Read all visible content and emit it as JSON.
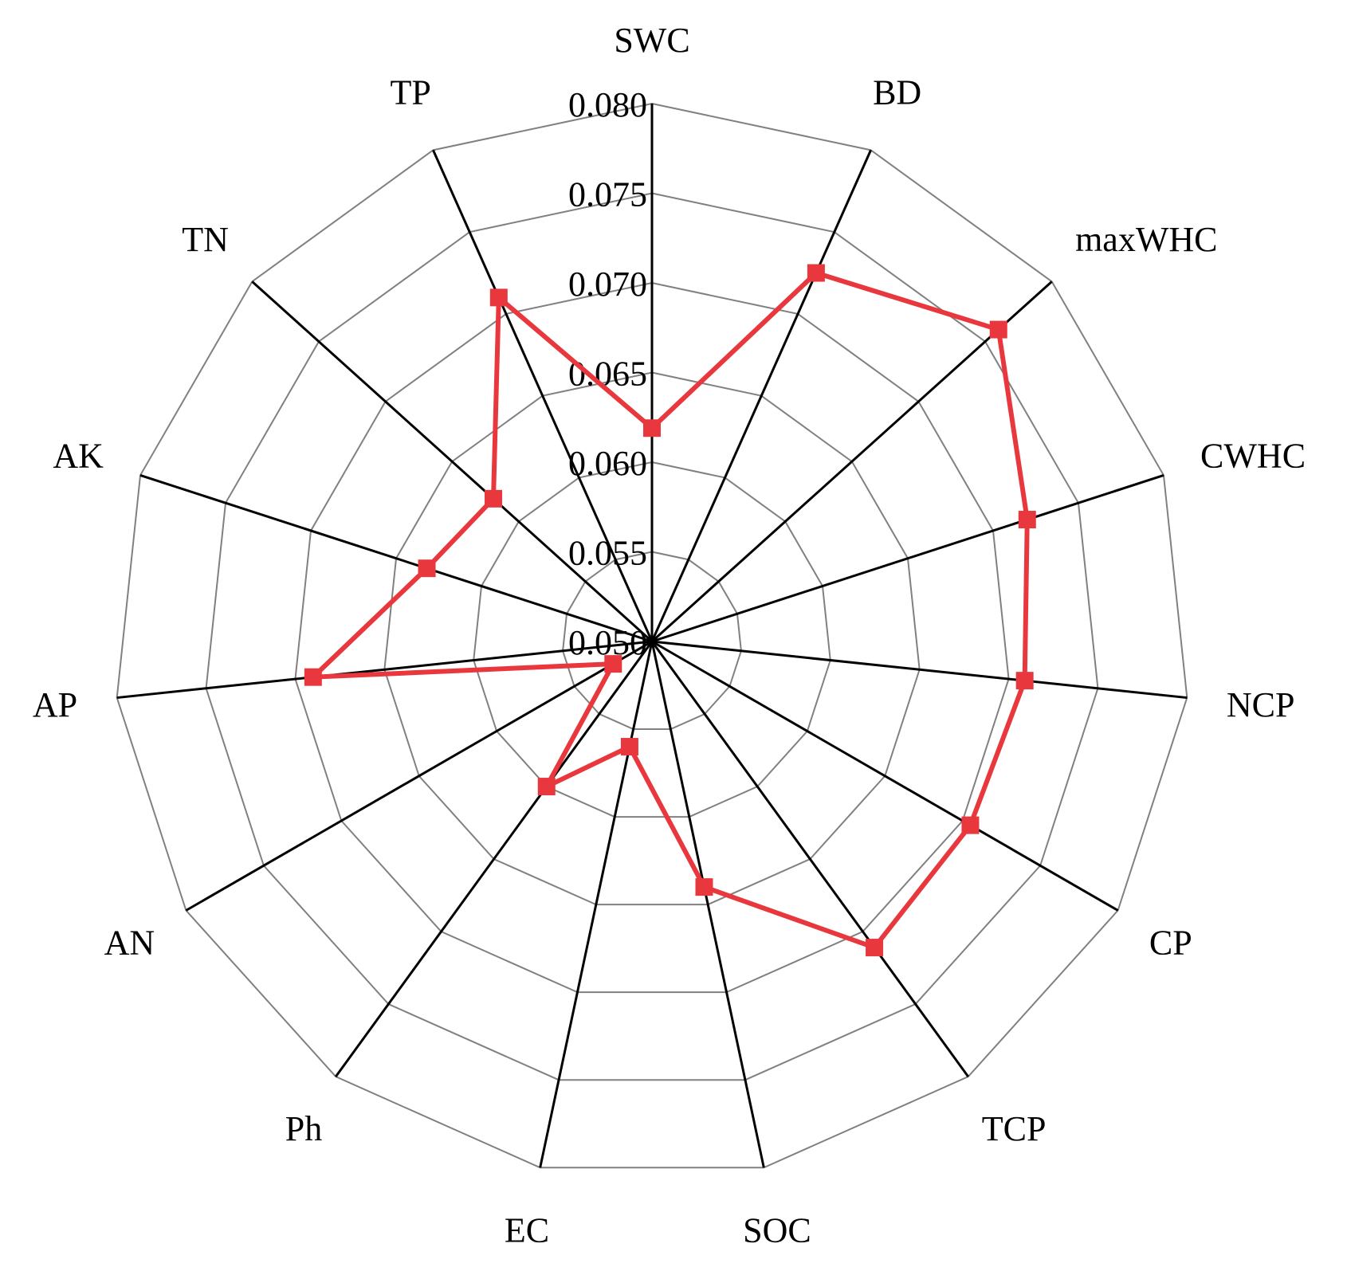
{
  "chart_data": {
    "type": "radar",
    "title": "",
    "axes": [
      "SWC",
      "BD",
      "maxWHC",
      "CWHC",
      "NCP",
      "CP",
      "TCP",
      "SOC",
      "EC",
      "Ph",
      "AN",
      "AP",
      "AK",
      "TN",
      "TP"
    ],
    "rlim": [
      0.05,
      0.08
    ],
    "ticks": [
      "0.050",
      "0.055",
      "0.060",
      "0.065",
      "0.070",
      "0.075",
      "0.080"
    ],
    "tick_values": [
      0.05,
      0.055,
      0.06,
      0.065,
      0.07,
      0.075,
      0.08
    ],
    "grid": true,
    "series": [
      {
        "values": [
          0.0619,
          0.0725,
          0.076,
          0.072,
          0.0709,
          0.0705,
          0.0711,
          0.064,
          0.056,
          0.06,
          0.0525,
          0.069,
          0.0632,
          0.0619,
          0.071
        ],
        "color": "#e8383d",
        "marker": "square"
      }
    ],
    "colors": {
      "series": "#e8383d",
      "spoke": "#000000",
      "grid": "#808080"
    }
  }
}
